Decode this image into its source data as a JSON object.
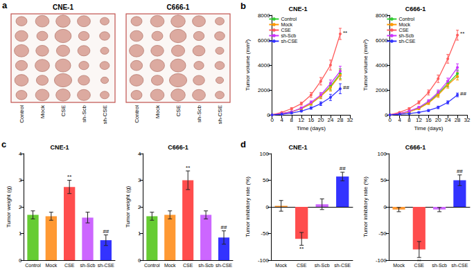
{
  "photo_panel": {
    "panel": "a",
    "titles": [
      "CNE-1",
      "C666-1"
    ],
    "groups": [
      "Control",
      "Mock",
      "CSE",
      "sh-Scb",
      "sh-CSE"
    ]
  },
  "chart_data": [
    {
      "type": "line",
      "panel": "b",
      "title": "CNE-1",
      "x_label": "Time (days)",
      "y_label": "Tumor volume (mm³)",
      "x": [
        0,
        4,
        8,
        12,
        16,
        20,
        24,
        28
      ],
      "xlim": [
        0,
        32
      ],
      "xticks": [
        0,
        4,
        8,
        12,
        16,
        20,
        24,
        28,
        32
      ],
      "ylim": [
        0,
        8000
      ],
      "yticks": [
        0,
        2000,
        4000,
        6000,
        8000
      ],
      "grid": false,
      "legend": "upper left",
      "marker": "circle",
      "series": [
        {
          "name": "Control",
          "color": "#33cc33",
          "values": [
            0,
            100,
            250,
            500,
            900,
            1500,
            2300,
            3300
          ],
          "errors": [
            0,
            30,
            50,
            80,
            120,
            200,
            300,
            400
          ]
        },
        {
          "name": "Mock",
          "color": "#ff9900",
          "values": [
            0,
            100,
            250,
            500,
            900,
            1500,
            2200,
            3200
          ],
          "errors": [
            0,
            30,
            50,
            80,
            120,
            200,
            300,
            400
          ]
        },
        {
          "name": "CSE",
          "color": "#ff5c5c",
          "values": [
            0,
            200,
            500,
            900,
            1600,
            2700,
            4000,
            6500
          ],
          "errors": [
            0,
            40,
            80,
            120,
            200,
            300,
            400,
            450
          ],
          "annotation": "**"
        },
        {
          "name": "sh-Scb",
          "color": "#cc33ff",
          "values": [
            0,
            100,
            250,
            550,
            1000,
            1600,
            2500,
            3500
          ],
          "errors": [
            0,
            30,
            50,
            80,
            120,
            200,
            300,
            400
          ]
        },
        {
          "name": "sh-CSE",
          "color": "#3333ff",
          "values": [
            0,
            50,
            150,
            300,
            550,
            900,
            1400,
            2100
          ],
          "errors": [
            0,
            20,
            40,
            60,
            100,
            150,
            250,
            400
          ],
          "annotation": "##"
        }
      ]
    },
    {
      "type": "line",
      "title": "C666-1",
      "x_label": "Time (days)",
      "y_label": "Tumor volume (mm³)",
      "x": [
        0,
        4,
        8,
        12,
        16,
        20,
        24,
        28
      ],
      "xlim": [
        0,
        32
      ],
      "xticks": [
        0,
        4,
        8,
        12,
        16,
        20,
        24,
        28,
        32
      ],
      "ylim": [
        0,
        8000
      ],
      "yticks": [
        0,
        2000,
        4000,
        6000,
        8000
      ],
      "grid": false,
      "legend": "upper left",
      "marker": "circle",
      "series": [
        {
          "name": "Control",
          "color": "#33cc33",
          "values": [
            0,
            100,
            250,
            550,
            1000,
            1700,
            2500,
            3300
          ],
          "errors": [
            0,
            30,
            50,
            80,
            120,
            200,
            250,
            300
          ]
        },
        {
          "name": "Mock",
          "color": "#ff9900",
          "values": [
            0,
            100,
            250,
            500,
            950,
            1600,
            2400,
            3100
          ],
          "errors": [
            0,
            30,
            50,
            80,
            120,
            200,
            250,
            300
          ]
        },
        {
          "name": "CSE",
          "color": "#ff5c5c",
          "values": [
            0,
            200,
            500,
            1000,
            1800,
            2900,
            4500,
            6400
          ],
          "errors": [
            0,
            40,
            80,
            120,
            200,
            300,
            350,
            400
          ],
          "annotation": "**"
        },
        {
          "name": "sh-Scb",
          "color": "#cc33ff",
          "values": [
            0,
            100,
            300,
            600,
            1100,
            1800,
            2700,
            3800
          ],
          "errors": [
            0,
            30,
            50,
            80,
            120,
            200,
            250,
            300
          ]
        },
        {
          "name": "sh-CSE",
          "color": "#3333ff",
          "values": [
            0,
            50,
            100,
            200,
            350,
            600,
            1000,
            1600
          ],
          "errors": [
            0,
            20,
            30,
            50,
            80,
            100,
            120,
            150
          ],
          "annotation": "##"
        }
      ]
    },
    {
      "type": "bar",
      "panel": "c",
      "title": "CNE-1",
      "y_label": "Tumor weight (g)",
      "categories": [
        "Control",
        "Mock",
        "CSE",
        "sh-Scb",
        "sh-CSE"
      ],
      "values": [
        1.7,
        1.65,
        2.75,
        1.6,
        0.75
      ],
      "errors": [
        0.15,
        0.15,
        0.25,
        0.2,
        0.2
      ],
      "annotations": [
        null,
        null,
        "**",
        null,
        "##"
      ],
      "colors": [
        "#66cc33",
        "#ff9933",
        "#ff4d4d",
        "#cc66ff",
        "#3333ff"
      ],
      "ylim": [
        0,
        4
      ],
      "yticks": [
        0,
        1,
        2,
        3,
        4
      ],
      "grid": false
    },
    {
      "type": "bar",
      "title": "C666-1",
      "y_label": "Tumor weight (g)",
      "categories": [
        "Control",
        "Mock",
        "CSE",
        "sh-Scb",
        "sh-CSE"
      ],
      "values": [
        1.65,
        1.7,
        3.0,
        1.7,
        0.85
      ],
      "errors": [
        0.15,
        0.15,
        0.35,
        0.15,
        0.25
      ],
      "annotations": [
        null,
        null,
        "**",
        null,
        "##"
      ],
      "colors": [
        "#66cc33",
        "#ff9933",
        "#ff4d4d",
        "#cc66ff",
        "#3333ff"
      ],
      "ylim": [
        0,
        4
      ],
      "yticks": [
        0,
        1,
        2,
        3,
        4
      ],
      "grid": false
    },
    {
      "type": "bar",
      "panel": "d",
      "title": "CNE-1",
      "y_label": "Tumor inhibitory rate (%)",
      "categories": [
        "Mock",
        "CSE",
        "sh-Scb",
        "sh-CSE"
      ],
      "values": [
        2,
        -60,
        5,
        57
      ],
      "errors": [
        10,
        12,
        10,
        8
      ],
      "annotations": [
        null,
        "**",
        null,
        "##"
      ],
      "colors": [
        "#ff9933",
        "#ff4d4d",
        "#cc66ff",
        "#3333ff"
      ],
      "ylim": [
        -100,
        100
      ],
      "yticks": [
        -100,
        -50,
        0,
        50,
        100
      ],
      "grid": false
    },
    {
      "type": "bar",
      "title": "C666-1",
      "y_label": "Tumor inhibitory rate (%)",
      "categories": [
        "Mock",
        "CSE",
        "sh-Scb",
        "sh-CSE"
      ],
      "values": [
        -5,
        -80,
        -5,
        50
      ],
      "errors": [
        4,
        15,
        4,
        10
      ],
      "annotations": [
        null,
        "**",
        null,
        "##"
      ],
      "colors": [
        "#ff9933",
        "#ff4d4d",
        "#cc66ff",
        "#3333ff"
      ],
      "ylim": [
        -100,
        100
      ],
      "yticks": [
        -100,
        -50,
        0,
        50,
        100
      ],
      "grid": false
    }
  ]
}
